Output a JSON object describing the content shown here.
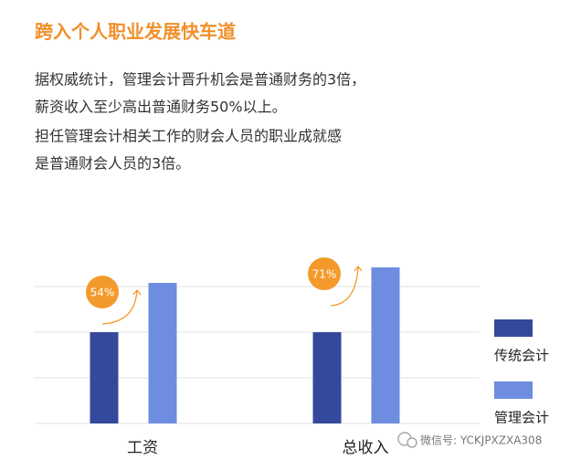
{
  "title": "跨入个人职业发展快车道",
  "paragraph": [
    "据权威统计，管理会计晋升机会是普通财务的3倍，",
    "薪资收入至少高出普通财务50%以上。",
    "担任管理会计相关工作的财会人员的职业成就感",
    "是普通财会人员的3倍。"
  ],
  "chart_data": {
    "type": "bar",
    "categories": [
      "工资",
      "总收入"
    ],
    "series": [
      {
        "name": "传统会计",
        "color": "#35499c",
        "values": [
          100,
          100
        ]
      },
      {
        "name": "管理会计",
        "color": "#6e8de0",
        "values": [
          154,
          171
        ]
      }
    ],
    "ylim": [
      0,
      200
    ],
    "gridlines": [
      0,
      50,
      100,
      150
    ],
    "annotations": [
      "54%",
      "71%"
    ],
    "annotation_color": "#f39a2b"
  },
  "watermark": "微信号: YCKJPXZXA308"
}
